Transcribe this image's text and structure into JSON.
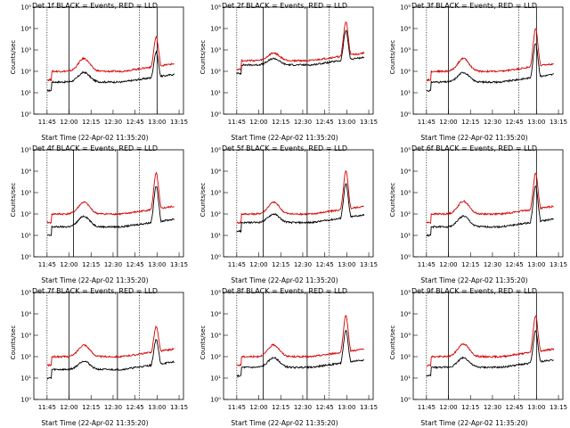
{
  "legend_title": "BLACK = Events, RED = LLD",
  "x_axis_label": "Start Time (22-Apr-02 11:35:20)",
  "y_axis_label": "Counts/sec",
  "x_ticks": [
    "11:45",
    "12:00",
    "12:15",
    "12:30",
    "12:45",
    "13:00",
    "13:15"
  ],
  "y_ticks": [
    "10⁰",
    "10¹",
    "10²",
    "10³",
    "10⁴",
    "10⁵"
  ],
  "colors": {
    "events": "#000000",
    "lld": "#d40000"
  },
  "chart_data": [
    {
      "type": "line",
      "title": "Det 1f",
      "dotted_lines": [
        11.75,
        12.8
      ],
      "solid_lines": [
        12.0,
        13.0
      ],
      "series": [
        {
          "name": "Events",
          "baseline": 1.5,
          "bump": 0.45,
          "peak": 2.9
        },
        {
          "name": "LLD",
          "baseline": 2.0,
          "bump": 0.6,
          "peak": 3.6
        }
      ]
    },
    {
      "type": "line",
      "title": "Det 2f",
      "dotted_lines": [
        11.75,
        12.8
      ],
      "solid_lines": [
        12.05,
        12.55
      ],
      "series": [
        {
          "name": "Events",
          "baseline": 2.3,
          "bump": 0.3,
          "peak": 3.9
        },
        {
          "name": "LLD",
          "baseline": 2.5,
          "bump": 0.35,
          "peak": 4.3
        }
      ]
    },
    {
      "type": "line",
      "title": "Det 3f",
      "dotted_lines": [
        11.75,
        12.8
      ],
      "solid_lines": [
        12.0,
        13.0
      ],
      "series": [
        {
          "name": "Events",
          "baseline": 1.5,
          "bump": 0.45,
          "peak": 3.3
        },
        {
          "name": "LLD",
          "baseline": 2.0,
          "bump": 0.6,
          "peak": 4.0
        }
      ]
    },
    {
      "type": "line",
      "title": "Det 4f",
      "dotted_lines": [
        11.75,
        12.8
      ],
      "solid_lines": [
        12.05,
        12.55
      ],
      "series": [
        {
          "name": "Events",
          "baseline": 1.4,
          "bump": 0.5,
          "peak": 3.3
        },
        {
          "name": "LLD",
          "baseline": 2.0,
          "bump": 0.55,
          "peak": 3.9
        }
      ]
    },
    {
      "type": "line",
      "title": "Det 5f",
      "dotted_lines": [
        11.75,
        12.8
      ],
      "solid_lines": [
        12.05,
        12.55
      ],
      "series": [
        {
          "name": "Events",
          "baseline": 1.6,
          "bump": 0.4,
          "peak": 3.4
        },
        {
          "name": "LLD",
          "baseline": 2.0,
          "bump": 0.55,
          "peak": 4.0
        }
      ]
    },
    {
      "type": "line",
      "title": "Det 6f",
      "dotted_lines": [
        11.75,
        12.8
      ],
      "solid_lines": [
        12.0,
        13.0
      ],
      "series": [
        {
          "name": "Events",
          "baseline": 1.4,
          "bump": 0.5,
          "peak": 3.3
        },
        {
          "name": "LLD",
          "baseline": 2.0,
          "bump": 0.6,
          "peak": 3.9
        }
      ]
    },
    {
      "type": "line",
      "title": "Det 7f",
      "dotted_lines": [
        11.75,
        12.8
      ],
      "solid_lines": [
        12.0,
        12.55
      ],
      "series": [
        {
          "name": "Events",
          "baseline": 1.4,
          "bump": 0.4,
          "peak": 2.8
        },
        {
          "name": "LLD",
          "baseline": 2.0,
          "bump": 0.55,
          "peak": 3.4
        }
      ]
    },
    {
      "type": "line",
      "title": "Det 8f",
      "dotted_lines": [
        11.75,
        12.8
      ],
      "solid_lines": [
        12.05,
        12.55
      ],
      "series": [
        {
          "name": "Events",
          "baseline": 1.5,
          "bump": 0.45,
          "peak": 3.2
        },
        {
          "name": "LLD",
          "baseline": 2.0,
          "bump": 0.55,
          "peak": 3.9
        }
      ]
    },
    {
      "type": "line",
      "title": "Det 9f",
      "dotted_lines": [
        11.75,
        12.8
      ],
      "solid_lines": [
        12.0,
        13.0
      ],
      "series": [
        {
          "name": "Events",
          "baseline": 1.5,
          "bump": 0.45,
          "peak": 3.2
        },
        {
          "name": "LLD",
          "baseline": 2.0,
          "bump": 0.6,
          "peak": 3.9
        }
      ]
    }
  ]
}
